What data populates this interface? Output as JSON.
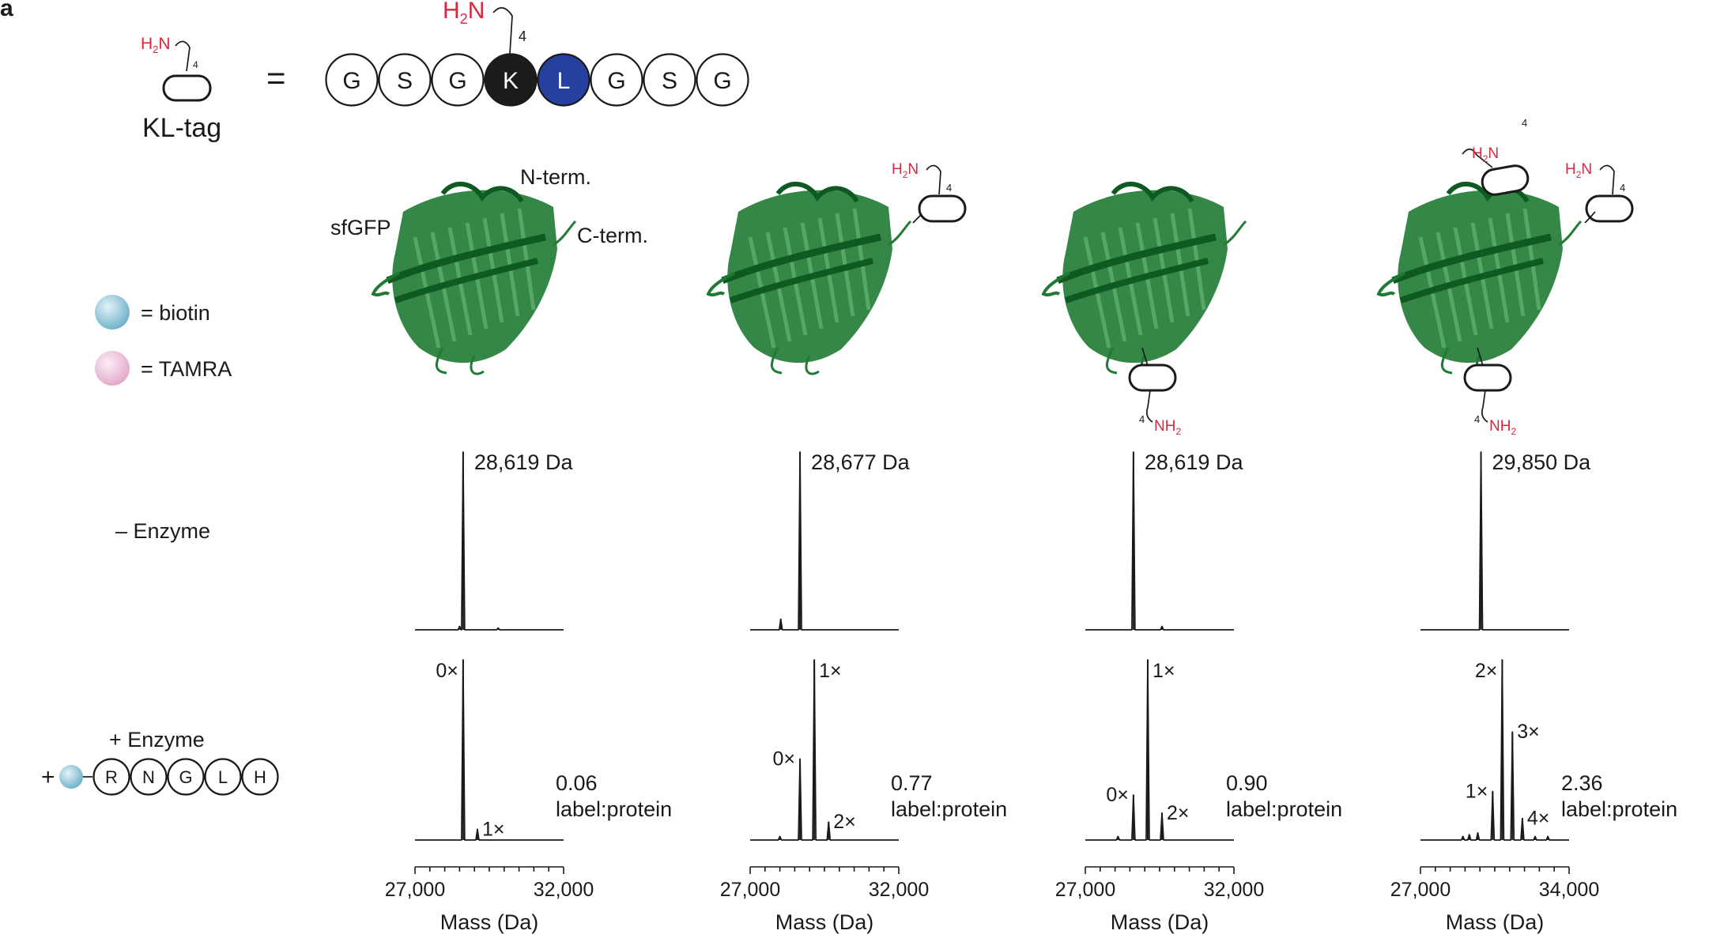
{
  "panel_label": "a",
  "kl_tag": {
    "name": "KL-tag",
    "equals": "=",
    "amine_label": "H2N",
    "chain_subscript": "4",
    "sequence": [
      {
        "letter": "G",
        "fill": "#ffffff",
        "text": "#1a1a1a"
      },
      {
        "letter": "S",
        "fill": "#ffffff",
        "text": "#1a1a1a"
      },
      {
        "letter": "G",
        "fill": "#ffffff",
        "text": "#1a1a1a"
      },
      {
        "letter": "K",
        "fill": "#1c1c1c",
        "text": "#ffffff"
      },
      {
        "letter": "L",
        "fill": "#2640a0",
        "text": "#ffffff"
      },
      {
        "letter": "G",
        "fill": "#ffffff",
        "text": "#1a1a1a"
      },
      {
        "letter": "S",
        "fill": "#ffffff",
        "text": "#1a1a1a"
      },
      {
        "letter": "G",
        "fill": "#ffffff",
        "text": "#1a1a1a"
      }
    ]
  },
  "legend": {
    "biotin": {
      "label": "= biotin",
      "color": "#6aaec8"
    },
    "tamra": {
      "label": "= TAMRA",
      "color": "#e2a6c9"
    }
  },
  "protein": {
    "name": "sfGFP",
    "n_term": "N-term.",
    "c_term": "C-term.",
    "color": "#1f7a34"
  },
  "row_labels": {
    "minus_enzyme": "– Enzyme",
    "plus_enzyme": "+ Enzyme",
    "plus_sign": "+",
    "substrate": [
      "R",
      "N",
      "G",
      "L",
      "H"
    ]
  },
  "colors": {
    "amine": "#d6283e",
    "line": "#1a1a1a"
  },
  "chart_data": [
    {
      "type": "line",
      "row": "– Enzyme",
      "panel": 1,
      "xlim": [
        27000,
        32000
      ],
      "peaks": [
        {
          "x": 28619,
          "y": 1.0
        },
        {
          "x": 28500,
          "y": 0.02
        },
        {
          "x": 29800,
          "y": 0.01
        }
      ],
      "annotation": "28,619 Da"
    },
    {
      "type": "line",
      "row": "– Enzyme",
      "panel": 2,
      "xlim": [
        27000,
        32000
      ],
      "peaks": [
        {
          "x": 28677,
          "y": 1.0
        },
        {
          "x": 28030,
          "y": 0.06
        }
      ],
      "annotation": "28,677 Da"
    },
    {
      "type": "line",
      "row": "– Enzyme",
      "panel": 3,
      "xlim": [
        27000,
        32000
      ],
      "peaks": [
        {
          "x": 28619,
          "y": 1.0
        },
        {
          "x": 29580,
          "y": 0.02
        }
      ],
      "annotation": "28,619 Da"
    },
    {
      "type": "line",
      "row": "– Enzyme",
      "panel": 4,
      "xlim": [
        27000,
        34000
      ],
      "peaks": [
        {
          "x": 29850,
          "y": 1.0
        }
      ],
      "annotation": "29,850 Da"
    },
    {
      "type": "line",
      "row": "+ Enzyme",
      "panel": 1,
      "xlim": [
        27000,
        32000
      ],
      "xlabel": "Mass (Da)",
      "xticks": [
        "27,000",
        "32,000"
      ],
      "peaks": [
        {
          "x": 28619,
          "y": 1.0,
          "label": "0×"
        },
        {
          "x": 29100,
          "y": 0.06,
          "label": "1×"
        }
      ],
      "ratio": "0.06",
      "ratio_unit": "label:protein"
    },
    {
      "type": "line",
      "row": "+ Enzyme",
      "panel": 2,
      "xlim": [
        27000,
        32000
      ],
      "xlabel": "Mass (Da)",
      "xticks": [
        "27,000",
        "32,000"
      ],
      "peaks": [
        {
          "x": 28000,
          "y": 0.02
        },
        {
          "x": 28677,
          "y": 0.45,
          "label": "0×"
        },
        {
          "x": 29158,
          "y": 1.0,
          "label": "1×"
        },
        {
          "x": 29640,
          "y": 0.1,
          "label": "2×"
        }
      ],
      "ratio": "0.77",
      "ratio_unit": "label:protein"
    },
    {
      "type": "line",
      "row": "+ Enzyme",
      "panel": 3,
      "xlim": [
        27000,
        32000
      ],
      "xlabel": "Mass (Da)",
      "xticks": [
        "27,000",
        "32,000"
      ],
      "peaks": [
        {
          "x": 28100,
          "y": 0.02
        },
        {
          "x": 28619,
          "y": 0.25,
          "label": "0×"
        },
        {
          "x": 29100,
          "y": 1.0,
          "label": "1×"
        },
        {
          "x": 29580,
          "y": 0.15,
          "label": "2×"
        }
      ],
      "ratio": "0.90",
      "ratio_unit": "label:protein"
    },
    {
      "type": "line",
      "row": "+ Enzyme",
      "panel": 4,
      "xlim": [
        27000,
        34000
      ],
      "xlabel": "Mass (Da)",
      "xticks": [
        "27,000",
        "34,000"
      ],
      "peaks": [
        {
          "x": 29000,
          "y": 0.02
        },
        {
          "x": 29300,
          "y": 0.03
        },
        {
          "x": 29700,
          "y": 0.04
        },
        {
          "x": 30400,
          "y": 0.27,
          "label": "1×"
        },
        {
          "x": 30850,
          "y": 1.0,
          "label": "2×"
        },
        {
          "x": 31330,
          "y": 0.6,
          "label": "3×"
        },
        {
          "x": 31800,
          "y": 0.12,
          "label": "4×"
        },
        {
          "x": 32400,
          "y": 0.02
        },
        {
          "x": 33000,
          "y": 0.02
        }
      ],
      "ratio": "2.36",
      "ratio_unit": "label:protein"
    }
  ]
}
